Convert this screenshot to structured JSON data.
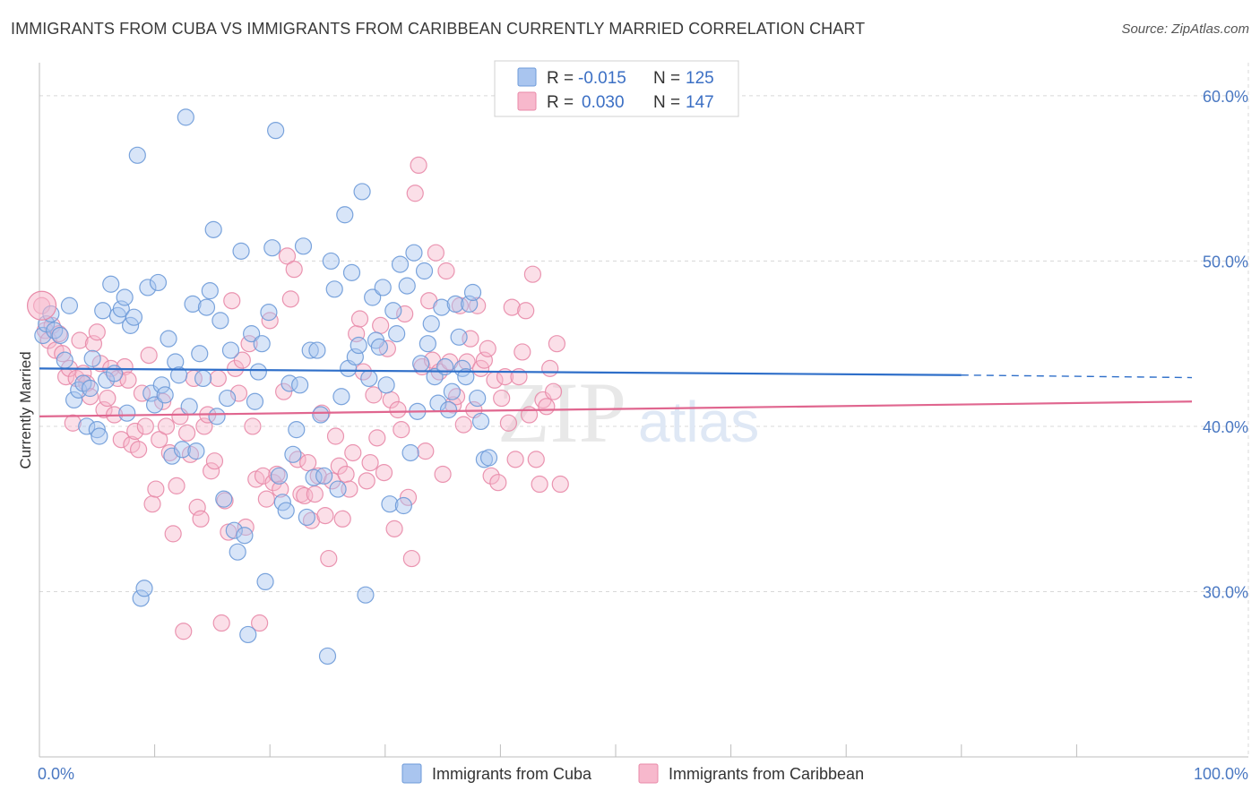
{
  "title": "IMMIGRANTS FROM CUBA VS IMMIGRANTS FROM CARIBBEAN CURRENTLY MARRIED CORRELATION CHART",
  "source": "Source: ZipAtlas.com",
  "watermark": {
    "zip": "ZIP",
    "atlas": "atlas"
  },
  "colors": {
    "cuba_fill": "#a9c5ef",
    "cuba_stroke": "#6d9ad8",
    "cuba_line": "#2f6fc9",
    "carib_fill": "#f7b8cc",
    "carib_stroke": "#e88aa8",
    "carib_line": "#e0668f",
    "grid": "#d8d8d8",
    "tick_text": "#4a78c2"
  },
  "chart_data": {
    "type": "scatter",
    "title": "IMMIGRANTS FROM CUBA VS IMMIGRANTS FROM CARIBBEAN CURRENTLY MARRIED CORRELATION CHART",
    "xlabel": "",
    "ylabel": "Currently Married",
    "xlim": [
      0,
      100
    ],
    "ylim": [
      20,
      62
    ],
    "x_tick_labels": [
      "0.0%",
      "100.0%"
    ],
    "y_ticks": [
      30,
      40,
      50,
      60
    ],
    "y_tick_labels": [
      "30.0%",
      "40.0%",
      "50.0%",
      "60.0%"
    ],
    "grid": true,
    "legend_position": "top-center",
    "legend": [
      {
        "series": "Immigrants from Cuba",
        "r_label": "R =",
        "r": "-0.015",
        "n_label": "N =",
        "n": "125"
      },
      {
        "series": "Immigrants from Caribbean",
        "r_label": "R =",
        "r": "0.030",
        "n_label": "N =",
        "n": "147"
      }
    ],
    "series": [
      {
        "name": "Immigrants from Cuba",
        "trend": {
          "x0": 0,
          "y0": 43.5,
          "x1": 80,
          "y1": 43.1,
          "dash_to_x": 100,
          "dash_to_y": 42.95
        },
        "points": [
          [
            0.3,
            45.5
          ],
          [
            0.6,
            46.2
          ],
          [
            1.0,
            46.8
          ],
          [
            1.3,
            45.8
          ],
          [
            1.8,
            45.5
          ],
          [
            2.2,
            44.0
          ],
          [
            2.6,
            47.3
          ],
          [
            3.0,
            41.6
          ],
          [
            3.4,
            42.2
          ],
          [
            3.8,
            42.6
          ],
          [
            4.1,
            40.0
          ],
          [
            4.4,
            42.3
          ],
          [
            4.6,
            44.1
          ],
          [
            5.0,
            39.8
          ],
          [
            5.2,
            39.4
          ],
          [
            5.5,
            47.0
          ],
          [
            5.8,
            42.8
          ],
          [
            6.2,
            48.6
          ],
          [
            6.5,
            43.2
          ],
          [
            6.8,
            46.7
          ],
          [
            7.1,
            47.1
          ],
          [
            7.4,
            47.8
          ],
          [
            7.6,
            40.8
          ],
          [
            7.9,
            46.1
          ],
          [
            8.2,
            46.6
          ],
          [
            8.5,
            56.4
          ],
          [
            8.8,
            29.6
          ],
          [
            9.1,
            30.2
          ],
          [
            9.4,
            48.4
          ],
          [
            9.7,
            42.0
          ],
          [
            10.0,
            41.3
          ],
          [
            10.3,
            48.7
          ],
          [
            10.6,
            42.5
          ],
          [
            10.9,
            41.9
          ],
          [
            11.2,
            45.3
          ],
          [
            11.5,
            38.2
          ],
          [
            11.8,
            43.9
          ],
          [
            12.1,
            43.1
          ],
          [
            12.4,
            38.6
          ],
          [
            12.7,
            58.7
          ],
          [
            13.0,
            41.2
          ],
          [
            13.3,
            47.4
          ],
          [
            13.6,
            38.5
          ],
          [
            13.9,
            44.4
          ],
          [
            14.2,
            42.9
          ],
          [
            14.5,
            47.2
          ],
          [
            14.8,
            48.2
          ],
          [
            15.1,
            51.9
          ],
          [
            15.4,
            40.6
          ],
          [
            15.7,
            46.4
          ],
          [
            16.0,
            35.6
          ],
          [
            16.3,
            41.7
          ],
          [
            16.6,
            44.6
          ],
          [
            16.9,
            33.7
          ],
          [
            17.2,
            32.4
          ],
          [
            17.5,
            50.6
          ],
          [
            17.8,
            33.4
          ],
          [
            18.1,
            27.4
          ],
          [
            18.4,
            45.6
          ],
          [
            18.7,
            41.5
          ],
          [
            19.0,
            43.3
          ],
          [
            19.3,
            45.0
          ],
          [
            19.6,
            30.6
          ],
          [
            19.9,
            46.9
          ],
          [
            20.2,
            50.8
          ],
          [
            20.5,
            57.9
          ],
          [
            20.8,
            37.0
          ],
          [
            21.1,
            35.4
          ],
          [
            21.4,
            34.9
          ],
          [
            21.7,
            42.6
          ],
          [
            22.0,
            38.3
          ],
          [
            22.3,
            39.8
          ],
          [
            22.6,
            42.5
          ],
          [
            22.9,
            50.9
          ],
          [
            23.2,
            34.5
          ],
          [
            23.5,
            44.6
          ],
          [
            23.8,
            36.9
          ],
          [
            24.1,
            44.6
          ],
          [
            24.4,
            40.7
          ],
          [
            24.7,
            37.0
          ],
          [
            25.0,
            26.1
          ],
          [
            25.3,
            50.0
          ],
          [
            25.6,
            48.3
          ],
          [
            25.9,
            36.2
          ],
          [
            26.2,
            41.8
          ],
          [
            26.5,
            52.8
          ],
          [
            26.8,
            43.5
          ],
          [
            27.1,
            49.3
          ],
          [
            27.4,
            44.2
          ],
          [
            27.7,
            44.9
          ],
          [
            28.0,
            54.2
          ],
          [
            28.3,
            29.8
          ],
          [
            28.6,
            42.9
          ],
          [
            28.9,
            47.8
          ],
          [
            29.2,
            45.2
          ],
          [
            29.5,
            44.8
          ],
          [
            29.8,
            48.4
          ],
          [
            30.1,
            42.5
          ],
          [
            30.4,
            35.3
          ],
          [
            30.7,
            47.0
          ],
          [
            31.0,
            45.6
          ],
          [
            31.3,
            49.8
          ],
          [
            31.6,
            35.2
          ],
          [
            31.9,
            48.5
          ],
          [
            32.2,
            38.4
          ],
          [
            32.5,
            50.5
          ],
          [
            32.8,
            40.9
          ],
          [
            33.1,
            43.8
          ],
          [
            33.4,
            49.4
          ],
          [
            33.7,
            45.0
          ],
          [
            34.0,
            46.2
          ],
          [
            34.3,
            43.0
          ],
          [
            34.6,
            41.4
          ],
          [
            34.9,
            47.2
          ],
          [
            35.2,
            43.6
          ],
          [
            35.5,
            41.0
          ],
          [
            35.8,
            42.1
          ],
          [
            36.1,
            47.4
          ],
          [
            36.4,
            45.4
          ],
          [
            36.7,
            43.5
          ],
          [
            37.0,
            43.0
          ],
          [
            37.3,
            47.4
          ],
          [
            37.6,
            48.1
          ],
          [
            38.0,
            41.7
          ],
          [
            38.3,
            40.3
          ],
          [
            38.6,
            38.0
          ],
          [
            39.0,
            38.1
          ]
        ]
      },
      {
        "name": "Immigrants from Caribbean",
        "trend": {
          "x0": 0,
          "y0": 40.6,
          "x1": 100,
          "y1": 41.5
        },
        "points": [
          [
            0.2,
            47.3
          ],
          [
            0.5,
            45.8
          ],
          [
            0.8,
            45.2
          ],
          [
            1.1,
            46.1
          ],
          [
            1.4,
            44.6
          ],
          [
            1.7,
            45.6
          ],
          [
            2.0,
            44.4
          ],
          [
            2.3,
            43.0
          ],
          [
            2.6,
            43.5
          ],
          [
            2.9,
            40.2
          ],
          [
            3.2,
            42.9
          ],
          [
            3.5,
            45.2
          ],
          [
            3.8,
            43.2
          ],
          [
            4.1,
            42.6
          ],
          [
            4.4,
            41.8
          ],
          [
            4.7,
            45.0
          ],
          [
            5.0,
            45.7
          ],
          [
            5.3,
            43.8
          ],
          [
            5.6,
            41.0
          ],
          [
            5.9,
            41.7
          ],
          [
            6.2,
            43.5
          ],
          [
            6.5,
            40.7
          ],
          [
            6.8,
            42.9
          ],
          [
            7.1,
            39.2
          ],
          [
            7.4,
            43.6
          ],
          [
            7.7,
            42.8
          ],
          [
            8.0,
            38.9
          ],
          [
            8.3,
            39.7
          ],
          [
            8.6,
            38.6
          ],
          [
            8.9,
            42.0
          ],
          [
            9.2,
            40.0
          ],
          [
            9.5,
            44.3
          ],
          [
            9.8,
            35.3
          ],
          [
            10.1,
            36.2
          ],
          [
            10.4,
            39.2
          ],
          [
            10.7,
            41.5
          ],
          [
            11.0,
            40.0
          ],
          [
            11.3,
            38.4
          ],
          [
            11.6,
            33.5
          ],
          [
            11.9,
            36.4
          ],
          [
            12.2,
            40.6
          ],
          [
            12.5,
            27.6
          ],
          [
            12.8,
            39.6
          ],
          [
            13.1,
            38.3
          ],
          [
            13.4,
            42.9
          ],
          [
            13.7,
            35.1
          ],
          [
            14.0,
            34.4
          ],
          [
            14.3,
            40.0
          ],
          [
            14.6,
            40.7
          ],
          [
            14.9,
            37.3
          ],
          [
            15.2,
            37.9
          ],
          [
            15.5,
            42.9
          ],
          [
            15.8,
            28.1
          ],
          [
            16.1,
            35.5
          ],
          [
            16.4,
            33.6
          ],
          [
            16.7,
            47.6
          ],
          [
            17.0,
            43.5
          ],
          [
            17.3,
            42.0
          ],
          [
            17.6,
            44.0
          ],
          [
            17.9,
            33.9
          ],
          [
            18.2,
            45.0
          ],
          [
            18.5,
            40.0
          ],
          [
            18.8,
            36.8
          ],
          [
            19.1,
            28.1
          ],
          [
            19.4,
            37.0
          ],
          [
            19.7,
            35.6
          ],
          [
            20.0,
            46.4
          ],
          [
            20.3,
            36.6
          ],
          [
            20.6,
            37.1
          ],
          [
            20.9,
            36.2
          ],
          [
            21.2,
            42.1
          ],
          [
            21.5,
            50.3
          ],
          [
            21.8,
            47.7
          ],
          [
            22.1,
            49.5
          ],
          [
            22.4,
            38.0
          ],
          [
            22.7,
            35.9
          ],
          [
            23.0,
            35.8
          ],
          [
            23.3,
            37.8
          ],
          [
            23.6,
            34.3
          ],
          [
            23.9,
            35.9
          ],
          [
            24.2,
            37.0
          ],
          [
            24.5,
            40.8
          ],
          [
            24.8,
            34.6
          ],
          [
            25.1,
            32.0
          ],
          [
            25.4,
            36.7
          ],
          [
            25.7,
            39.4
          ],
          [
            26.0,
            37.6
          ],
          [
            26.3,
            34.4
          ],
          [
            26.6,
            37.1
          ],
          [
            26.9,
            36.2
          ],
          [
            27.2,
            38.4
          ],
          [
            27.5,
            45.6
          ],
          [
            27.8,
            46.5
          ],
          [
            28.1,
            43.3
          ],
          [
            28.4,
            36.7
          ],
          [
            28.7,
            37.8
          ],
          [
            29.0,
            41.9
          ],
          [
            29.3,
            39.3
          ],
          [
            29.6,
            46.1
          ],
          [
            29.9,
            37.2
          ],
          [
            30.2,
            44.7
          ],
          [
            30.5,
            41.6
          ],
          [
            30.8,
            33.8
          ],
          [
            31.1,
            41.0
          ],
          [
            31.4,
            39.8
          ],
          [
            31.7,
            46.8
          ],
          [
            32.0,
            35.7
          ],
          [
            32.3,
            32.0
          ],
          [
            32.6,
            54.1
          ],
          [
            32.9,
            55.8
          ],
          [
            33.2,
            43.6
          ],
          [
            33.5,
            38.5
          ],
          [
            33.8,
            47.6
          ],
          [
            34.1,
            44.0
          ],
          [
            34.4,
            50.5
          ],
          [
            34.7,
            43.3
          ],
          [
            35.0,
            37.1
          ],
          [
            35.3,
            49.4
          ],
          [
            35.6,
            43.9
          ],
          [
            35.9,
            41.3
          ],
          [
            36.2,
            41.8
          ],
          [
            36.5,
            47.3
          ],
          [
            36.8,
            40.1
          ],
          [
            37.1,
            43.9
          ],
          [
            37.4,
            45.3
          ],
          [
            37.7,
            41.0
          ],
          [
            38.0,
            47.3
          ],
          [
            38.3,
            43.5
          ],
          [
            38.6,
            44.0
          ],
          [
            38.9,
            44.7
          ],
          [
            39.2,
            37.0
          ],
          [
            39.5,
            42.8
          ],
          [
            39.8,
            36.6
          ],
          [
            40.1,
            41.7
          ],
          [
            40.4,
            43.0
          ],
          [
            40.7,
            40.2
          ],
          [
            41.0,
            47.2
          ],
          [
            41.3,
            38.0
          ],
          [
            41.6,
            43.0
          ],
          [
            41.9,
            44.5
          ],
          [
            42.2,
            47.0
          ],
          [
            42.5,
            40.7
          ],
          [
            42.8,
            49.2
          ],
          [
            43.1,
            38.0
          ],
          [
            43.4,
            36.5
          ],
          [
            43.7,
            41.6
          ],
          [
            44.0,
            41.2
          ],
          [
            44.3,
            43.5
          ],
          [
            44.6,
            42.1
          ],
          [
            44.9,
            45.0
          ],
          [
            45.2,
            36.5
          ]
        ]
      }
    ]
  },
  "bottom_legend": [
    "Immigrants from Cuba",
    "Immigrants from Caribbean"
  ]
}
